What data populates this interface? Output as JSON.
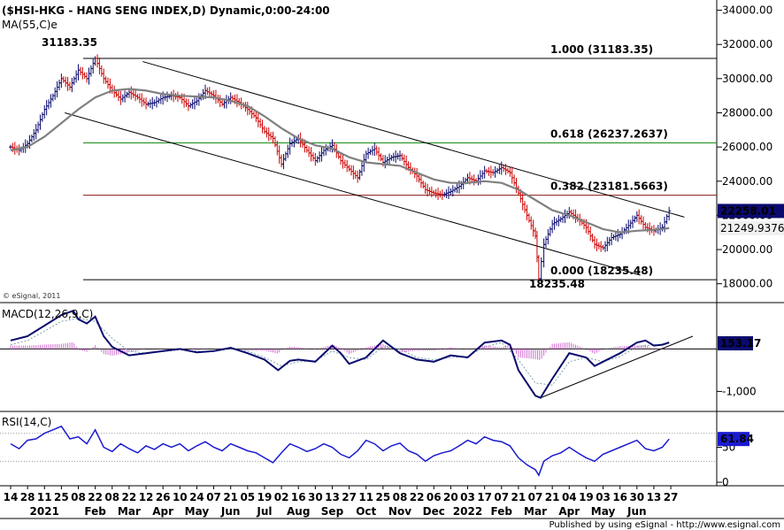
{
  "chart_data": {
    "type": "line",
    "title": "($HSI-HKG - HANG SENG INDEX,D) Dynamic,0:00-24:00",
    "copyright": "© eSignal, 2011",
    "footer": "Published by using eSignal - http://www.esignal.com",
    "colors": {
      "price": "#0a0a6e",
      "ma": "#808080",
      "fib_100": "#000000",
      "fib_618": "#1a8a1a",
      "fib_382": "#8b1a1a",
      "fib_0": "#000000",
      "macd_line": "#0a0a6e",
      "macd_signal": "#7aa0a8",
      "macd_hist": "#d070d0",
      "rsi": "#1a1ad0",
      "up_bar": "#0a0a6e",
      "down_bar": "#cc0000"
    },
    "x_axis": {
      "day_ticks": [
        "14",
        "28",
        "11",
        "25",
        "08",
        "22",
        "08",
        "22",
        "12",
        "26",
        "10",
        "24",
        "07",
        "21",
        "05",
        "19",
        "02",
        "16",
        "30",
        "13",
        "27",
        "11",
        "25",
        "08",
        "22",
        "06",
        "20",
        "03",
        "17",
        "07",
        "21",
        "07",
        "21",
        "04",
        "19",
        "03",
        "16",
        "30",
        "13",
        "27"
      ],
      "months": [
        {
          "label": "2021",
          "index": 2
        },
        {
          "label": "Feb",
          "index": 5
        },
        {
          "label": "Mar",
          "index": 7
        },
        {
          "label": "Apr",
          "index": 9
        },
        {
          "label": "May",
          "index": 11
        },
        {
          "label": "Jun",
          "index": 13
        },
        {
          "label": "Jul",
          "index": 15
        },
        {
          "label": "Aug",
          "index": 17
        },
        {
          "label": "Sep",
          "index": 19
        },
        {
          "label": "Oct",
          "index": 21
        },
        {
          "label": "Nov",
          "index": 23
        },
        {
          "label": "Dec",
          "index": 25
        },
        {
          "label": "2022",
          "index": 27
        },
        {
          "label": "Feb",
          "index": 29
        },
        {
          "label": "Mar",
          "index": 31
        },
        {
          "label": "Apr",
          "index": 33
        },
        {
          "label": "May",
          "index": 35
        },
        {
          "label": "Jun",
          "index": 37
        }
      ]
    },
    "price_panel": {
      "ma_label": "MA(55,C)e",
      "y_ticks": [
        "34000.00",
        "32000.00",
        "30000.00",
        "28000.00",
        "26000.00",
        "24000.00",
        "22000.00",
        "20000.00",
        "18000.00"
      ],
      "y_tick_values": [
        34000,
        32000,
        30000,
        28000,
        26000,
        24000,
        22000,
        20000,
        18000
      ],
      "ylim": [
        17000,
        34600
      ],
      "last_price": "22258.01",
      "ma_value": "21249.9376",
      "high_label": "31183.35",
      "low_label": "18235.48",
      "fib_levels": [
        {
          "label": "1.000 (31183.35)",
          "value": 31183.35,
          "key": "fib_100"
        },
        {
          "label": "0.618 (26237.2637)",
          "value": 26237.2637,
          "key": "fib_618"
        },
        {
          "label": "0.382 (23181.5663)",
          "value": 23181.5663,
          "key": "fib_382"
        },
        {
          "label": "0.000 (18235.48)",
          "value": 18235.48,
          "key": "fib_0"
        }
      ],
      "channel": {
        "upper": [
          [
            7.8,
            31000
          ],
          [
            39.8,
            21900
          ]
        ],
        "lower": [
          [
            3.2,
            28000
          ],
          [
            37.2,
            18500
          ]
        ]
      },
      "close": [
        [
          0,
          26000
        ],
        [
          0.5,
          25800
        ],
        [
          1,
          26200
        ],
        [
          1.5,
          27000
        ],
        [
          2,
          28200
        ],
        [
          2.5,
          29000
        ],
        [
          3,
          30000
        ],
        [
          3.5,
          29500
        ],
        [
          4,
          30500
        ],
        [
          4.5,
          30000
        ],
        [
          5,
          31183
        ],
        [
          5.5,
          30000
        ],
        [
          6,
          29300
        ],
        [
          6.5,
          28800
        ],
        [
          7,
          29200
        ],
        [
          7.5,
          28900
        ],
        [
          8,
          28500
        ],
        [
          8.5,
          28600
        ],
        [
          9,
          28900
        ],
        [
          9.5,
          29000
        ],
        [
          10,
          28900
        ],
        [
          10.5,
          28400
        ],
        [
          11,
          28700
        ],
        [
          11.5,
          29300
        ],
        [
          12,
          29000
        ],
        [
          12.5,
          28500
        ],
        [
          13,
          28900
        ],
        [
          13.5,
          28600
        ],
        [
          14,
          28200
        ],
        [
          14.5,
          27700
        ],
        [
          15,
          26900
        ],
        [
          15.5,
          26500
        ],
        [
          16,
          25000
        ],
        [
          16.5,
          26200
        ],
        [
          17,
          26500
        ],
        [
          17.5,
          25800
        ],
        [
          18,
          25200
        ],
        [
          18.5,
          25800
        ],
        [
          19,
          26100
        ],
        [
          19.5,
          25200
        ],
        [
          20,
          24700
        ],
        [
          20.5,
          24200
        ],
        [
          21,
          25600
        ],
        [
          21.5,
          25900
        ],
        [
          22,
          25100
        ],
        [
          22.5,
          25400
        ],
        [
          23,
          25500
        ],
        [
          23.5,
          24800
        ],
        [
          24,
          24300
        ],
        [
          24.5,
          23500
        ],
        [
          25,
          23300
        ],
        [
          25.5,
          23200
        ],
        [
          26,
          23400
        ],
        [
          26.5,
          23700
        ],
        [
          27,
          24200
        ],
        [
          27.5,
          24000
        ],
        [
          28,
          24600
        ],
        [
          28.5,
          24500
        ],
        [
          29,
          24800
        ],
        [
          29.5,
          24500
        ],
        [
          30,
          23300
        ],
        [
          30.5,
          22000
        ],
        [
          31,
          20800
        ],
        [
          31.2,
          18300
        ],
        [
          31.5,
          20300
        ],
        [
          32,
          21500
        ],
        [
          32.5,
          21800
        ],
        [
          33,
          22200
        ],
        [
          33.5,
          21800
        ],
        [
          34,
          21300
        ],
        [
          34.5,
          20300
        ],
        [
          35,
          20100
        ],
        [
          35.5,
          20700
        ],
        [
          36,
          20900
        ],
        [
          36.5,
          21400
        ],
        [
          37,
          22000
        ],
        [
          37.5,
          21300
        ],
        [
          38,
          21100
        ],
        [
          38.5,
          21300
        ],
        [
          38.9,
          22258
        ]
      ],
      "ma": [
        [
          0,
          25800
        ],
        [
          1,
          26000
        ],
        [
          2,
          26600
        ],
        [
          3,
          27400
        ],
        [
          4,
          28200
        ],
        [
          5,
          28900
        ],
        [
          6,
          29300
        ],
        [
          7,
          29400
        ],
        [
          8,
          29300
        ],
        [
          9,
          29100
        ],
        [
          10,
          29000
        ],
        [
          11,
          28950
        ],
        [
          12,
          28900
        ],
        [
          13,
          28700
        ],
        [
          14,
          28400
        ],
        [
          15,
          27800
        ],
        [
          16,
          27100
        ],
        [
          17,
          26500
        ],
        [
          18,
          26100
        ],
        [
          19,
          25900
        ],
        [
          20,
          25400
        ],
        [
          21,
          25100
        ],
        [
          22,
          25000
        ],
        [
          23,
          24900
        ],
        [
          24,
          24500
        ],
        [
          25,
          24100
        ],
        [
          26,
          23900
        ],
        [
          27,
          23900
        ],
        [
          28,
          24000
        ],
        [
          29,
          23900
        ],
        [
          30,
          23500
        ],
        [
          31,
          22900
        ],
        [
          32,
          22300
        ],
        [
          33,
          22000
        ],
        [
          34,
          21600
        ],
        [
          35,
          21200
        ],
        [
          36,
          21000
        ],
        [
          37,
          21100
        ],
        [
          38,
          21150
        ],
        [
          38.9,
          21250
        ]
      ]
    },
    "macd_panel": {
      "label": "MACD(12,26,9,C)",
      "value": "153.17",
      "y_ticks": [
        "-1,000"
      ],
      "y_tick_values": [
        -1000
      ],
      "zero_value": 0,
      "ylim": [
        -1450,
        1050
      ],
      "trendline": [
        [
          31.3,
          -1150
        ],
        [
          40.3,
          300
        ]
      ],
      "macd": [
        [
          0,
          200
        ],
        [
          1,
          300
        ],
        [
          2,
          550
        ],
        [
          3,
          800
        ],
        [
          3.7,
          900
        ],
        [
          4,
          700
        ],
        [
          4.5,
          600
        ],
        [
          5,
          760
        ],
        [
          5.5,
          300
        ],
        [
          6,
          50
        ],
        [
          7,
          -150
        ],
        [
          8,
          -100
        ],
        [
          9,
          -50
        ],
        [
          10,
          0
        ],
        [
          11,
          -80
        ],
        [
          12,
          -50
        ],
        [
          13,
          30
        ],
        [
          14,
          -100
        ],
        [
          15,
          -250
        ],
        [
          15.8,
          -500
        ],
        [
          16.5,
          -280
        ],
        [
          17,
          -250
        ],
        [
          18,
          -300
        ],
        [
          19,
          80
        ],
        [
          19.5,
          -100
        ],
        [
          20,
          -350
        ],
        [
          21,
          -200
        ],
        [
          22,
          200
        ],
        [
          23,
          -100
        ],
        [
          24,
          -250
        ],
        [
          25,
          -300
        ],
        [
          26,
          -150
        ],
        [
          27,
          -200
        ],
        [
          28,
          150
        ],
        [
          29,
          200
        ],
        [
          29.5,
          100
        ],
        [
          30,
          -500
        ],
        [
          31,
          -1100
        ],
        [
          31.3,
          -1150
        ],
        [
          32,
          -700
        ],
        [
          33,
          -100
        ],
        [
          34,
          -200
        ],
        [
          34.5,
          -400
        ],
        [
          35,
          -300
        ],
        [
          36,
          -100
        ],
        [
          37,
          150
        ],
        [
          37.5,
          200
        ],
        [
          38,
          80
        ],
        [
          38.5,
          100
        ],
        [
          38.9,
          153
        ]
      ],
      "signal": [
        [
          0,
          100
        ],
        [
          1,
          200
        ],
        [
          2,
          420
        ],
        [
          3,
          650
        ],
        [
          4,
          720
        ],
        [
          5,
          650
        ],
        [
          6,
          250
        ],
        [
          7,
          -50
        ],
        [
          8,
          -100
        ],
        [
          9,
          -60
        ],
        [
          10,
          -20
        ],
        [
          11,
          -50
        ],
        [
          12,
          -60
        ],
        [
          13,
          0
        ],
        [
          14,
          -50
        ],
        [
          15,
          -200
        ],
        [
          16,
          -400
        ],
        [
          17,
          -300
        ],
        [
          18,
          -280
        ],
        [
          19,
          -50
        ],
        [
          20,
          -200
        ],
        [
          21,
          -250
        ],
        [
          22,
          50
        ],
        [
          23,
          0
        ],
        [
          24,
          -200
        ],
        [
          25,
          -250
        ],
        [
          26,
          -200
        ],
        [
          27,
          -180
        ],
        [
          28,
          50
        ],
        [
          29,
          150
        ],
        [
          30,
          -250
        ],
        [
          31,
          -800
        ],
        [
          32,
          -850
        ],
        [
          33,
          -300
        ],
        [
          34,
          -200
        ],
        [
          35,
          -300
        ],
        [
          36,
          -180
        ],
        [
          37,
          50
        ],
        [
          38,
          100
        ],
        [
          38.9,
          120
        ]
      ]
    },
    "rsi_panel": {
      "label": "RSI(14,C)",
      "value": "61.84",
      "y_ticks": [
        "50",
        "0"
      ],
      "y_tick_values": [
        50,
        0
      ],
      "levels": [
        70,
        30
      ],
      "ylim": [
        -5,
        100
      ],
      "rsi": [
        [
          0,
          55
        ],
        [
          0.5,
          48
        ],
        [
          1,
          60
        ],
        [
          1.5,
          62
        ],
        [
          2,
          70
        ],
        [
          2.5,
          75
        ],
        [
          3,
          80
        ],
        [
          3.5,
          62
        ],
        [
          4,
          65
        ],
        [
          4.5,
          55
        ],
        [
          5,
          75
        ],
        [
          5.5,
          50
        ],
        [
          6,
          44
        ],
        [
          6.5,
          55
        ],
        [
          7,
          48
        ],
        [
          7.5,
          42
        ],
        [
          8,
          52
        ],
        [
          8.5,
          47
        ],
        [
          9,
          55
        ],
        [
          9.5,
          50
        ],
        [
          10,
          55
        ],
        [
          10.5,
          45
        ],
        [
          11,
          52
        ],
        [
          11.5,
          58
        ],
        [
          12,
          50
        ],
        [
          12.5,
          45
        ],
        [
          13,
          55
        ],
        [
          13.5,
          50
        ],
        [
          14,
          45
        ],
        [
          14.5,
          42
        ],
        [
          15,
          35
        ],
        [
          15.5,
          28
        ],
        [
          16,
          42
        ],
        [
          16.5,
          55
        ],
        [
          17,
          50
        ],
        [
          17.5,
          44
        ],
        [
          18,
          48
        ],
        [
          18.5,
          55
        ],
        [
          19,
          50
        ],
        [
          19.5,
          40
        ],
        [
          20,
          35
        ],
        [
          20.5,
          45
        ],
        [
          21,
          60
        ],
        [
          21.5,
          55
        ],
        [
          22,
          45
        ],
        [
          22.5,
          52
        ],
        [
          23,
          56
        ],
        [
          23.5,
          45
        ],
        [
          24,
          40
        ],
        [
          24.5,
          30
        ],
        [
          25,
          38
        ],
        [
          25.5,
          42
        ],
        [
          26,
          45
        ],
        [
          26.5,
          52
        ],
        [
          27,
          60
        ],
        [
          27.5,
          55
        ],
        [
          28,
          65
        ],
        [
          28.5,
          60
        ],
        [
          29,
          58
        ],
        [
          29.5,
          52
        ],
        [
          30,
          35
        ],
        [
          30.5,
          25
        ],
        [
          31,
          18
        ],
        [
          31.2,
          10
        ],
        [
          31.5,
          30
        ],
        [
          32,
          38
        ],
        [
          32.5,
          42
        ],
        [
          33,
          50
        ],
        [
          33.5,
          42
        ],
        [
          34,
          35
        ],
        [
          34.5,
          30
        ],
        [
          35,
          40
        ],
        [
          35.5,
          45
        ],
        [
          36,
          50
        ],
        [
          36.5,
          55
        ],
        [
          37,
          60
        ],
        [
          37.5,
          48
        ],
        [
          38,
          45
        ],
        [
          38.5,
          50
        ],
        [
          38.9,
          61.84
        ]
      ]
    }
  }
}
